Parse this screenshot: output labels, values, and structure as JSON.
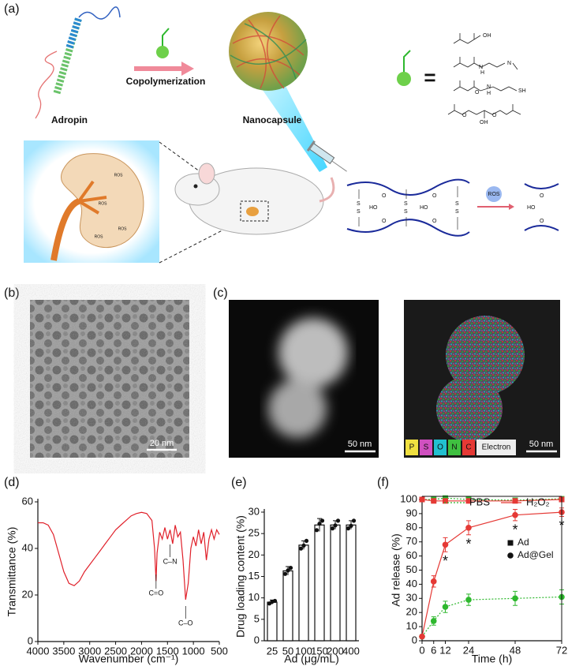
{
  "figure_a": {
    "panel": "(a)",
    "adropin": "Adropin",
    "process": "Copolymerization",
    "product": "Nanocapsule",
    "equals": "=",
    "ros": "ROS",
    "chem_labels": [
      "OH",
      "H",
      "N",
      "N",
      "O",
      "N",
      "H",
      "SH",
      "O",
      "OH",
      "O"
    ],
    "crosslink_labels": {
      "s": "S",
      "o": "O",
      "ho": "HO"
    }
  },
  "figure_b": {
    "panel": "(b)",
    "scale": "20 nm"
  },
  "figure_c": {
    "panel": "(c)",
    "scales": [
      "50 nm",
      "50 nm"
    ],
    "elements": [
      "P",
      "S",
      "O",
      "N",
      "C",
      "Electron"
    ]
  },
  "chart_data": [
    {
      "type": "line",
      "panel": "(d)",
      "xlabel": "Wavenumber (cm⁻¹)",
      "ylabel": "Transmittance (%)",
      "xlim": [
        4000,
        500
      ],
      "xticks": [
        4000,
        3500,
        3000,
        2500,
        2000,
        1500,
        1000,
        500
      ],
      "ylim": [
        0,
        60
      ],
      "yticks": [
        0,
        20,
        40,
        60
      ],
      "x": [
        4000,
        3900,
        3800,
        3700,
        3600,
        3500,
        3400,
        3300,
        3200,
        3100,
        3000,
        2900,
        2800,
        2700,
        2600,
        2500,
        2400,
        2300,
        2200,
        2100,
        2000,
        1900,
        1800,
        1750,
        1720,
        1700,
        1650,
        1600,
        1550,
        1500,
        1450,
        1400,
        1350,
        1300,
        1250,
        1200,
        1150,
        1100,
        1050,
        1000,
        950,
        900,
        850,
        800,
        750,
        700,
        650,
        600,
        550,
        500
      ],
      "series": [
        {
          "color": "#e0202a",
          "values": [
            51,
            51,
            50,
            46,
            38,
            30,
            25,
            24,
            26,
            30,
            33,
            36,
            39,
            42,
            45,
            48,
            50,
            52,
            54,
            55,
            55.5,
            55,
            52,
            40,
            26,
            38,
            47,
            44,
            49,
            44,
            48,
            42,
            50,
            45,
            47,
            35,
            18,
            25,
            40,
            45,
            41,
            48,
            42,
            47,
            35,
            44,
            48,
            44,
            48,
            46
          ]
        }
      ],
      "annotations": [
        {
          "label": "C=O",
          "x": 1720
        },
        {
          "label": "C–N",
          "x": 1450
        },
        {
          "label": "C–O",
          "x": 1150
        }
      ]
    },
    {
      "type": "bar",
      "panel": "(e)",
      "xlabel": "Ad (μg/mL)",
      "ylabel": "Drug loading content (%)",
      "categories": [
        "25",
        "50",
        "100",
        "150",
        "200",
        "400"
      ],
      "values": [
        9,
        16.3,
        22.3,
        27,
        27,
        27
      ],
      "errors": [
        0.5,
        1,
        1,
        1.5,
        1,
        1
      ],
      "points": [
        [
          8.7,
          9.1,
          9.3
        ],
        [
          15.6,
          16.4,
          17
        ],
        [
          21.5,
          22.2,
          23.3
        ],
        [
          25.8,
          27.3,
          28
        ],
        [
          26.2,
          26.9,
          28
        ],
        [
          26.2,
          26.8,
          28
        ]
      ],
      "ylim": [
        0,
        30
      ],
      "yticks": [
        0,
        5,
        10,
        15,
        20,
        25,
        30
      ],
      "color": "#ffffff"
    },
    {
      "type": "errorline",
      "panel": "(f)",
      "xlabel": "Time (h)",
      "ylabel": "Ad release (%)",
      "x": [
        0,
        6,
        12,
        24,
        48,
        72
      ],
      "xlim": [
        0,
        72
      ],
      "xticks": [
        0,
        6,
        12,
        24,
        48,
        72
      ],
      "ylim": [
        0,
        100
      ],
      "yticks": [
        0,
        10,
        20,
        30,
        40,
        50,
        60,
        70,
        80,
        90,
        100
      ],
      "line_legend": [
        {
          "label": "PBS",
          "color": "#2eb82e",
          "dash": true
        },
        {
          "label": "H₂O₂",
          "color": "#e53935",
          "dash": false
        }
      ],
      "marker_legend": [
        {
          "label": "Ad",
          "marker": "square"
        },
        {
          "label": "Ad@Gel",
          "marker": "circle"
        }
      ],
      "series": [
        {
          "color": "#2eb82e",
          "dash": true,
          "marker": "square",
          "values": [
            100,
            100,
            101,
            100,
            99.5,
            100.5
          ],
          "errors": [
            0,
            1,
            1.5,
            1,
            1,
            1
          ]
        },
        {
          "color": "#e53935",
          "dash": false,
          "marker": "square",
          "values": [
            100,
            99,
            99,
            99,
            99,
            100
          ],
          "errors": [
            0,
            1,
            1,
            1,
            1,
            1
          ]
        },
        {
          "color": "#2eb82e",
          "dash": true,
          "marker": "circle",
          "values": [
            3,
            14,
            24,
            29,
            30,
            31
          ],
          "errors": [
            0,
            3,
            4,
            4,
            5,
            5
          ]
        },
        {
          "color": "#e53935",
          "dash": false,
          "marker": "circle",
          "values": [
            3,
            42,
            68,
            80,
            89,
            91
          ],
          "errors": [
            0,
            4,
            5,
            5,
            4,
            3
          ]
        }
      ],
      "significance": [
        {
          "x": 12,
          "label": "*"
        },
        {
          "x": 24,
          "label": "*"
        },
        {
          "x": 48,
          "label": "*"
        },
        {
          "x": 72,
          "label": "*"
        }
      ]
    }
  ]
}
